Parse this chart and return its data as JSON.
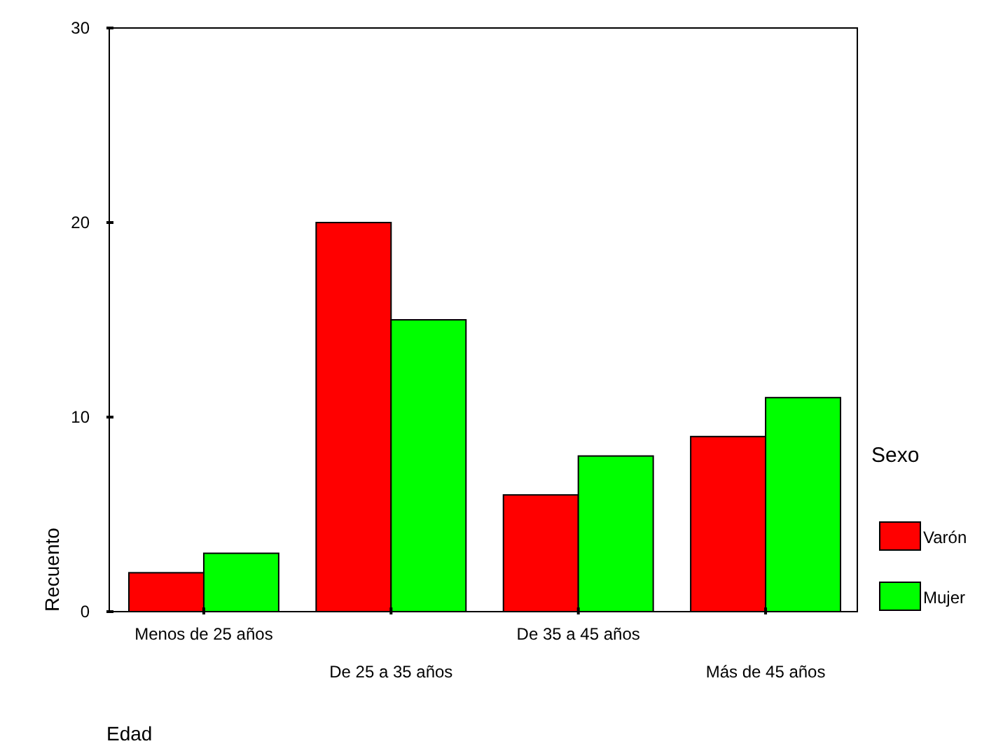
{
  "chart_data": {
    "type": "bar",
    "xlabel": "Edad",
    "ylabel": "Recuento",
    "legend_title": "Sexo",
    "categories": [
      "Menos de 25 años",
      "De 25 a 35 años",
      "De 35 a 45 años",
      "Más de 45 años"
    ],
    "series": [
      {
        "name": "Varón",
        "color": "#ff0000",
        "values": [
          2,
          20,
          6,
          9
        ]
      },
      {
        "name": "Mujer",
        "color": "#00ff00",
        "values": [
          3,
          15,
          8,
          11
        ]
      }
    ],
    "ylim": [
      0,
      30
    ],
    "yticks": [
      0,
      10,
      20,
      30
    ],
    "grid": false,
    "legend": "right"
  }
}
